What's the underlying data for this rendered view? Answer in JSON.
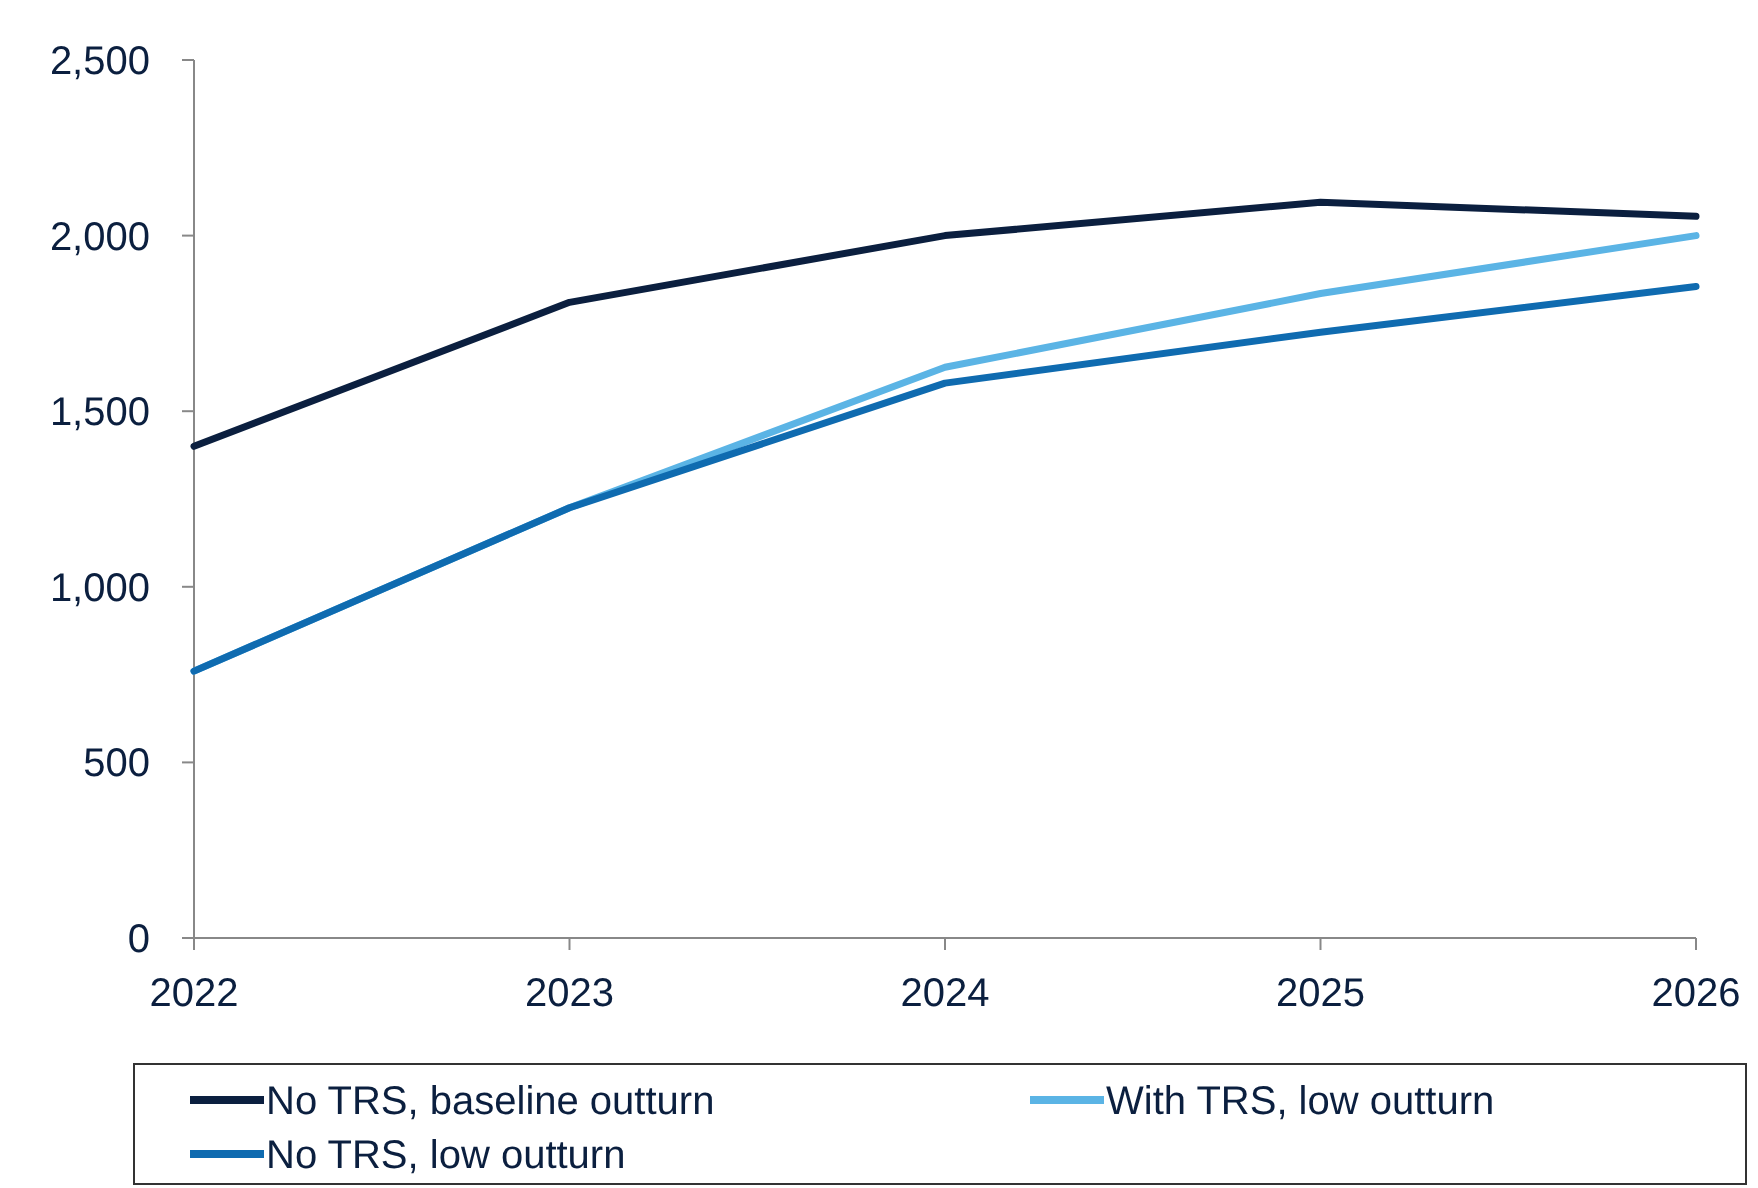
{
  "chart_data": {
    "type": "line",
    "x": [
      2022,
      2023,
      2024,
      2025,
      2026
    ],
    "xlim": [
      2022,
      2026
    ],
    "xticks": [
      2022,
      2023,
      2024,
      2025,
      2026
    ],
    "ylim": [
      0,
      2500
    ],
    "yticks": [
      0,
      500,
      {
        "value": 1000,
        "label": "1,000"
      },
      {
        "value": 1500,
        "label": "1,500"
      },
      {
        "value": 2000,
        "label": "2,000"
      },
      {
        "value": 2500,
        "label": "2,500"
      }
    ],
    "grid": false,
    "legend": "bottom",
    "marker": "none",
    "line_style": "solid",
    "series": [
      {
        "name": "No TRS, baseline outturn",
        "color": "#0b1f3f",
        "values": [
          1400,
          1810,
          2000,
          2095,
          2055
        ]
      },
      {
        "name": "With TRS, low outturn",
        "color": "#5bb4e5",
        "values": [
          760,
          1225,
          1625,
          1835,
          2000
        ]
      },
      {
        "name": "No TRS, low outturn",
        "color": "#0f6bb0",
        "values": [
          760,
          1225,
          1580,
          1725,
          1855
        ]
      }
    ]
  }
}
